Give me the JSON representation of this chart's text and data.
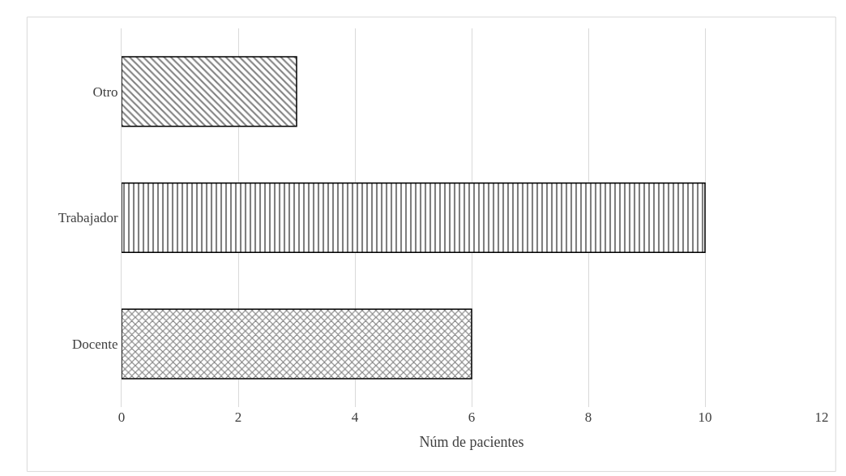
{
  "chart_data": {
    "type": "bar",
    "orientation": "horizontal",
    "xlabel": "Núm de pacientes",
    "categories": [
      "Otro",
      "Trabajador",
      "Docente"
    ],
    "values": [
      3,
      10,
      6
    ],
    "colors": [
      "#000000",
      "#000000",
      "#000000"
    ],
    "xlim": [
      0,
      12
    ],
    "xticks": [
      0,
      2,
      4,
      6,
      8,
      10,
      12
    ],
    "grid": "x",
    "legend": false
  }
}
